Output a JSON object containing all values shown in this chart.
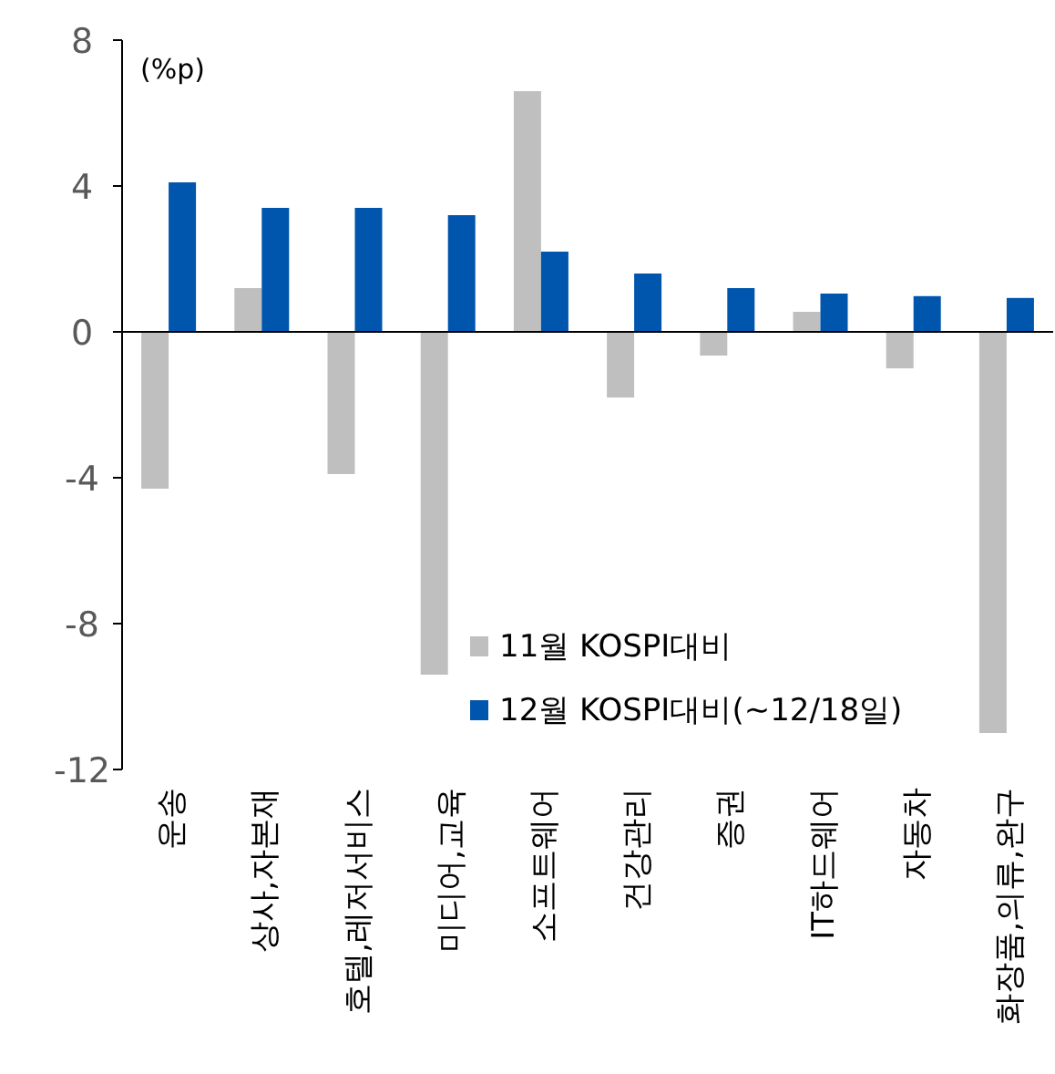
{
  "chart_data": {
    "type": "bar",
    "ylabel": "(%p)",
    "categories": [
      "운송",
      "상사,자본재",
      "호텔,레저서비스",
      "미디어,교육",
      "소프트웨어",
      "건강관리",
      "증권",
      "IT하드웨어",
      "자동차",
      "화장품,의류,완구"
    ],
    "series": [
      {
        "name": "11월 KOSPI대비",
        "color": "#bfbfbf",
        "values": [
          -4.3,
          1.2,
          -3.9,
          -9.4,
          6.6,
          -1.8,
          -0.65,
          0.55,
          -1.0,
          -11.0
        ]
      },
      {
        "name": "12월 KOSPI대비(~12/18일)",
        "color": "#0055ad",
        "values": [
          4.1,
          3.4,
          3.4,
          3.2,
          2.2,
          1.6,
          1.2,
          1.05,
          0.98,
          0.93
        ]
      }
    ],
    "ylim": [
      -12,
      8
    ],
    "yticks": [
      -12,
      -8,
      -4,
      0,
      4,
      8
    ],
    "legend": "bottom"
  }
}
